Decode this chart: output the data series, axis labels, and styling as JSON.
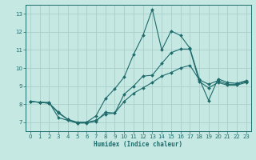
{
  "xlabel": "Humidex (Indice chaleur)",
  "xlim": [
    -0.5,
    23.5
  ],
  "ylim": [
    6.5,
    13.5
  ],
  "yticks": [
    7,
    8,
    9,
    10,
    11,
    12,
    13
  ],
  "xticks": [
    0,
    1,
    2,
    3,
    4,
    5,
    6,
    7,
    8,
    9,
    10,
    11,
    12,
    13,
    14,
    15,
    16,
    17,
    18,
    19,
    20,
    21,
    22,
    23
  ],
  "bg_color": "#c5e8e3",
  "grid_color": "#aacfca",
  "line_color": "#1e6b6b",
  "lines": [
    {
      "x": [
        0,
        1,
        2,
        3,
        4,
        5,
        6,
        7,
        8,
        9,
        10,
        11,
        12,
        13,
        14,
        15,
        16,
        17,
        18,
        19,
        20,
        21,
        22,
        23
      ],
      "y": [
        8.15,
        8.1,
        8.1,
        7.25,
        7.1,
        6.95,
        7.0,
        7.35,
        8.3,
        8.85,
        9.5,
        10.75,
        11.8,
        13.25,
        11.0,
        12.05,
        11.8,
        11.1,
        9.4,
        8.2,
        9.4,
        9.2,
        9.15,
        9.3
      ]
    },
    {
      "x": [
        0,
        1,
        2,
        3,
        4,
        5,
        6,
        7,
        8,
        9,
        10,
        11,
        12,
        13,
        14,
        15,
        16,
        17,
        18,
        19,
        20,
        21,
        22,
        23
      ],
      "y": [
        8.15,
        8.1,
        8.05,
        7.55,
        7.15,
        7.0,
        7.0,
        7.1,
        7.45,
        7.5,
        8.15,
        8.6,
        8.9,
        9.2,
        9.55,
        9.75,
        10.0,
        10.15,
        9.35,
        9.1,
        9.3,
        9.1,
        9.1,
        9.25
      ]
    },
    {
      "x": [
        0,
        1,
        2,
        3,
        4,
        5,
        6,
        7,
        8,
        9,
        10,
        11,
        12,
        13,
        14,
        15,
        16,
        17,
        18,
        19,
        20,
        21,
        22,
        23
      ],
      "y": [
        8.15,
        8.1,
        8.05,
        7.5,
        7.15,
        6.95,
        6.95,
        7.05,
        7.55,
        7.5,
        8.55,
        9.0,
        9.55,
        9.6,
        10.25,
        10.85,
        11.05,
        11.05,
        9.25,
        8.9,
        9.2,
        9.05,
        9.05,
        9.2
      ]
    }
  ]
}
